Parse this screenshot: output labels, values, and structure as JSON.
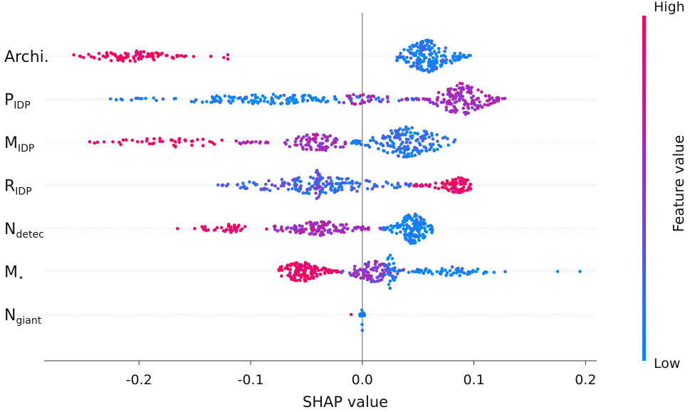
{
  "chart_data": {
    "type": "scatter",
    "subtype": "shap-beeswarm",
    "title": "",
    "xlabel": "SHAP value",
    "ylabel": "",
    "xlim": [
      -0.285,
      0.21
    ],
    "xticks": [
      -0.2,
      -0.1,
      0.0,
      0.1,
      0.2
    ],
    "xtick_labels": [
      "-0.2",
      "-0.1",
      "0.0",
      "0.1",
      "0.2"
    ],
    "features": [
      {
        "name": "Archi.",
        "base": "Archi.",
        "sub": ""
      },
      {
        "name": "P_IDP",
        "base": "P",
        "sub": "IDP"
      },
      {
        "name": "M_IDP",
        "base": "M",
        "sub": "IDP"
      },
      {
        "name": "R_IDP",
        "base": "R",
        "sub": "IDP"
      },
      {
        "name": "N_detec",
        "base": "N",
        "sub": "detec"
      },
      {
        "name": "M_*",
        "base": "M",
        "sub": "⋆"
      },
      {
        "name": "N_giant",
        "base": "N",
        "sub": "giant"
      }
    ],
    "colorbar": {
      "label": "Feature value",
      "high_label": "High",
      "low_label": "Low",
      "high_color": "#ff0052",
      "mid_color": "#8a35d9",
      "low_color": "#008bfb"
    },
    "series": [
      {
        "feature": "Archi.",
        "groups": [
          {
            "lo": -0.265,
            "hi": -0.15,
            "center": -0.21,
            "count": 85,
            "width": 0.35,
            "fvalue": 0.98
          },
          {
            "lo": -0.14,
            "hi": -0.105,
            "center": -0.12,
            "count": 4,
            "width": 0.2,
            "fvalue": 0.95
          },
          {
            "lo": 0.03,
            "hi": 0.098,
            "center": 0.058,
            "count": 190,
            "width": 1.0,
            "fvalue": 0.1
          }
        ]
      },
      {
        "feature": "P_IDP",
        "groups": [
          {
            "lo": -0.228,
            "hi": 0.06,
            "center": -0.08,
            "count": 150,
            "width": 0.3,
            "fvalue": 0.05
          },
          {
            "lo": -0.02,
            "hi": 0.06,
            "center": 0.0,
            "count": 40,
            "width": 0.35,
            "fvalue": 0.55
          },
          {
            "lo": 0.06,
            "hi": 0.128,
            "center": 0.088,
            "count": 150,
            "width": 1.0,
            "fvalue": 0.6
          }
        ]
      },
      {
        "feature": "M_IDP",
        "groups": [
          {
            "lo": -0.245,
            "hi": -0.08,
            "center": -0.17,
            "count": 50,
            "width": 0.3,
            "fvalue": 0.95
          },
          {
            "lo": -0.11,
            "hi": -0.015,
            "center": -0.04,
            "count": 85,
            "width": 0.55,
            "fvalue": 0.6
          },
          {
            "lo": -0.01,
            "hi": 0.083,
            "center": 0.04,
            "count": 170,
            "width": 0.95,
            "fvalue": 0.15
          }
        ]
      },
      {
        "feature": "R_IDP",
        "groups": [
          {
            "lo": -0.13,
            "hi": 0.05,
            "center": -0.04,
            "count": 170,
            "width": 0.55,
            "fvalue": 0.22
          },
          {
            "lo": -0.045,
            "hi": -0.035,
            "center": -0.04,
            "count": 25,
            "width": 1.0,
            "fvalue": 0.4
          },
          {
            "lo": 0.045,
            "hi": 0.097,
            "center": 0.085,
            "count": 90,
            "width": 0.5,
            "fvalue": 0.95
          }
        ]
      },
      {
        "feature": "N_detec",
        "groups": [
          {
            "lo": -0.168,
            "hi": -0.085,
            "center": -0.12,
            "count": 35,
            "width": 0.25,
            "fvalue": 0.95
          },
          {
            "lo": -0.08,
            "hi": 0.02,
            "center": -0.04,
            "count": 120,
            "width": 0.45,
            "fvalue": 0.65
          },
          {
            "lo": 0.018,
            "hi": 0.063,
            "center": 0.045,
            "count": 150,
            "width": 0.95,
            "fvalue": 0.05
          }
        ]
      },
      {
        "feature": "M_*",
        "groups": [
          {
            "lo": -0.075,
            "hi": -0.02,
            "center": -0.055,
            "count": 150,
            "width": 0.65,
            "fvalue": 0.95
          },
          {
            "lo": -0.02,
            "hi": 0.04,
            "center": 0.01,
            "count": 100,
            "width": 0.65,
            "fvalue": 0.5
          },
          {
            "lo": 0.02,
            "hi": 0.035,
            "center": 0.025,
            "count": 30,
            "width": 1.0,
            "fvalue": 0.1
          },
          {
            "lo": 0.04,
            "hi": 0.13,
            "center": 0.08,
            "count": 55,
            "width": 0.3,
            "fvalue": 0.02
          },
          {
            "lo": 0.175,
            "hi": 0.195,
            "center": 0.185,
            "count": 2,
            "width": 0.0,
            "fvalue": 0.0
          }
        ]
      },
      {
        "feature": "N_giant",
        "groups": [
          {
            "lo": -0.01,
            "hi": -0.01,
            "center": -0.01,
            "count": 1,
            "width": 0.0,
            "fvalue": 0.9
          },
          {
            "lo": 0.0,
            "hi": 0.0,
            "center": 0.0,
            "count": 22,
            "width": 1.0,
            "fvalue": 0.05
          }
        ]
      }
    ]
  }
}
